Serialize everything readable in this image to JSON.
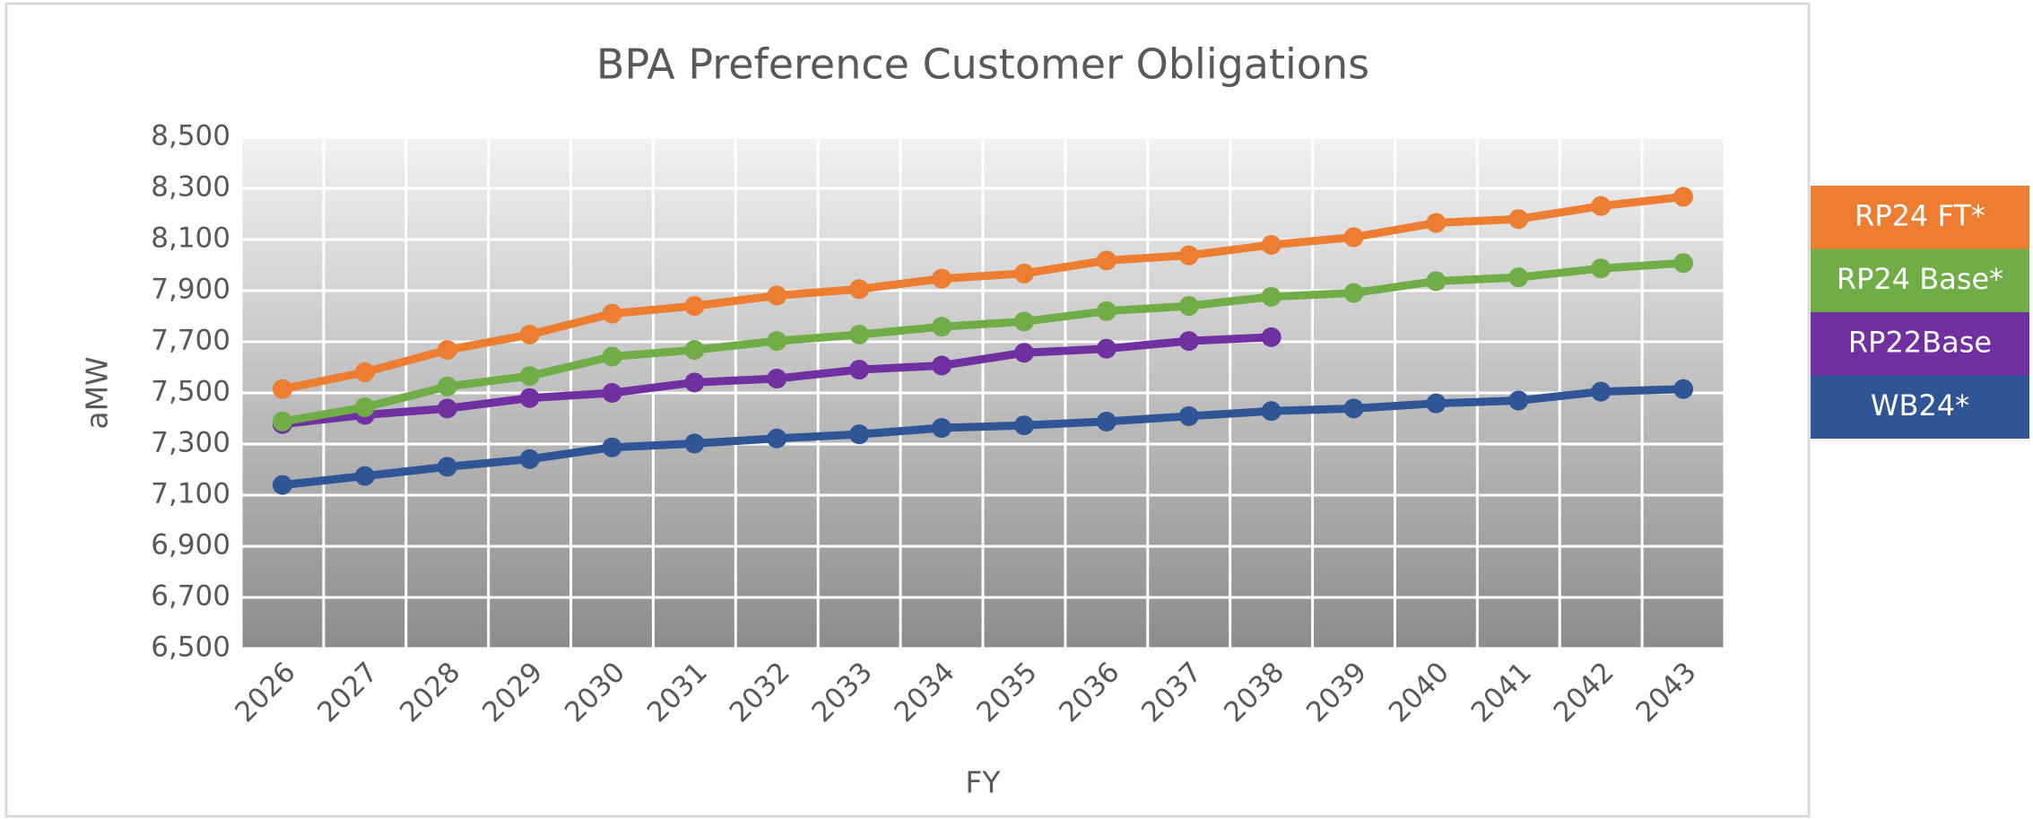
{
  "chart_data": {
    "type": "line",
    "title": "BPA Preference Customer Obligations",
    "x_label": "FY",
    "y_label": "aMW",
    "categories": [
      "2026",
      "2027",
      "2028",
      "2029",
      "2030",
      "2031",
      "2032",
      "2033",
      "2034",
      "2035",
      "2036",
      "2037",
      "2038",
      "2039",
      "2040",
      "2041",
      "2042",
      "2043"
    ],
    "series": [
      {
        "name": "RP24 FT*",
        "color": "#ed7d31",
        "values": [
          7515,
          7581,
          7668,
          7728,
          7810,
          7840,
          7881,
          7906,
          7947,
          7967,
          8018,
          8038,
          8079,
          8109,
          8165,
          8180,
          8231,
          8267
        ]
      },
      {
        "name": "RP24 Base*",
        "color": "#70ad47",
        "values": [
          7388,
          7444,
          7525,
          7566,
          7642,
          7668,
          7703,
          7728,
          7759,
          7779,
          7820,
          7840,
          7876,
          7891,
          7937,
          7952,
          7987,
          8008
        ]
      },
      {
        "name": "RP22Base",
        "color": "#7030a0",
        "values": [
          7378,
          7414,
          7439,
          7480,
          7500,
          7541,
          7556,
          7591,
          7607,
          7657,
          7673,
          7703,
          7718,
          null,
          null,
          null,
          null,
          null
        ]
      },
      {
        "name": "WB24*",
        "color": "#2f5597",
        "values": [
          7140,
          7175,
          7211,
          7241,
          7287,
          7302,
          7322,
          7338,
          7363,
          7373,
          7388,
          7409,
          7429,
          7439,
          7459,
          7470,
          7505,
          7515
        ]
      }
    ],
    "ylim": [
      6500,
      8500
    ],
    "yticks": [
      {
        "value": 6500,
        "label": "6,500"
      },
      {
        "value": 6700,
        "label": "6,700"
      },
      {
        "value": 6900,
        "label": "6,900"
      },
      {
        "value": 7100,
        "label": "7,100"
      },
      {
        "value": 7300,
        "label": "7,300"
      },
      {
        "value": 7500,
        "label": "7,500"
      },
      {
        "value": 7700,
        "label": "7,700"
      },
      {
        "value": 7900,
        "label": "7,900"
      },
      {
        "value": 8100,
        "label": "8,100"
      },
      {
        "value": 8300,
        "label": "8,300"
      },
      {
        "value": 8500,
        "label": "8,500"
      }
    ],
    "grid": true,
    "legend": "right"
  }
}
